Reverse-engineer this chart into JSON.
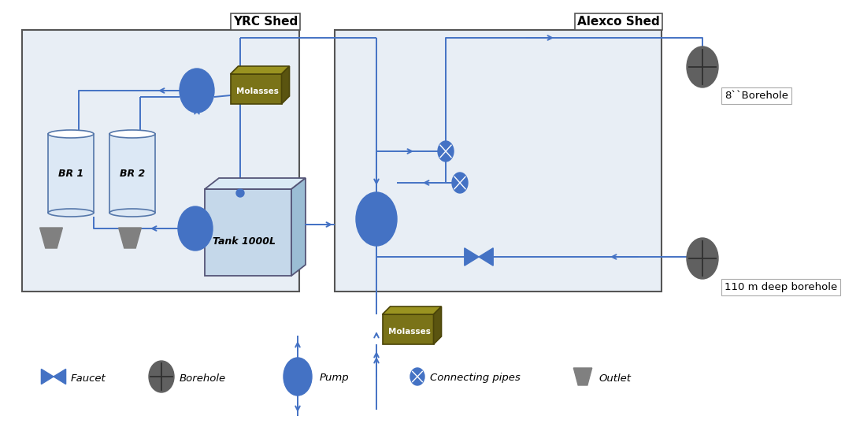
{
  "background": "#ffffff",
  "shed_fill": "#e8eef5",
  "shed_edge": "#555555",
  "pipe_color": "#4472c4",
  "pump_color": "#4472c4",
  "connector_color": "#4472c4",
  "faucet_color": "#4472c4",
  "borehole_color": "#606060",
  "tank_fill": "#c5d8ea",
  "tank_top": "#daeaf5",
  "tank_right": "#9bbdd4",
  "tank_edge": "#555577",
  "molasses_front": "#7a7318",
  "molasses_top": "#9a9320",
  "molasses_right": "#5a5410",
  "molasses_edge": "#4a4408",
  "outlet_fill": "#808080",
  "bioreactor_fill": "#dce8f5",
  "bioreactor_edge": "#5577aa",
  "yrc_shed_label": "YRC Shed",
  "alexco_shed_label": "Alexco Shed",
  "borehole_8_label": "8``Borehole",
  "borehole_110_label": "110 m deep borehole",
  "tank_label": "Tank 1000L",
  "molasses_label": "Molasses",
  "molasses_label2": "Molasses",
  "br1_label": "BR 1",
  "br2_label": "BR 2",
  "legend_faucet": "Faucet",
  "legend_borehole": "Borehole",
  "legend_pump": "Pump",
  "legend_connector": "Connecting pipes",
  "legend_outlet": "Outlet"
}
